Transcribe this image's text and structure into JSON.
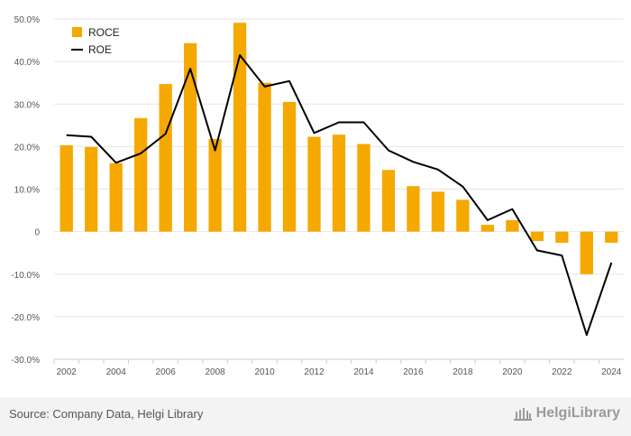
{
  "chart_data": {
    "type": "bar+line",
    "title": "",
    "xlabel": "",
    "ylabel": "",
    "ylim": [
      -30,
      50
    ],
    "y_ticks": [
      "50.0%",
      "40.0%",
      "30.0%",
      "20.0%",
      "10.0%",
      "0",
      "-10.0%",
      "-20.0%",
      "-30.0%"
    ],
    "y_tick_values": [
      50,
      40,
      30,
      20,
      10,
      0,
      -10,
      -20,
      -30
    ],
    "x": [
      2002,
      2003,
      2004,
      2005,
      2006,
      2007,
      2008,
      2009,
      2010,
      2011,
      2012,
      2013,
      2014,
      2015,
      2016,
      2017,
      2018,
      2019,
      2020,
      2021,
      2022,
      2023,
      2024
    ],
    "x_tick_labels": [
      "2002",
      "2004",
      "2006",
      "2008",
      "2010",
      "2012",
      "2014",
      "2016",
      "2018",
      "2020",
      "2022",
      "2024"
    ],
    "x_tick_values": [
      2002,
      2004,
      2006,
      2008,
      2010,
      2012,
      2014,
      2016,
      2018,
      2020,
      2022,
      2024
    ],
    "grid": true,
    "legend_position": "top-left",
    "series": [
      {
        "name": "ROCE",
        "kind": "bar",
        "color": "#F5A800",
        "values": [
          20.3,
          19.9,
          16.1,
          26.7,
          34.7,
          44.3,
          21.8,
          49.1,
          35.0,
          30.5,
          22.3,
          22.8,
          20.6,
          14.5,
          10.7,
          9.4,
          7.5,
          1.6,
          2.7,
          -2.2,
          -2.6,
          -10.0,
          -2.6
        ]
      },
      {
        "name": "ROE",
        "kind": "line",
        "color": "#000000",
        "values": [
          22.7,
          22.3,
          16.2,
          18.4,
          23.0,
          38.3,
          19.1,
          41.5,
          34.1,
          35.4,
          23.2,
          25.7,
          25.7,
          19.1,
          16.4,
          14.6,
          10.6,
          2.7,
          5.3,
          -4.4,
          -5.6,
          -24.3,
          -7.3
        ]
      }
    ]
  },
  "footer": {
    "source": "Source: Company Data, Helgi Library",
    "brand": "HelgiLibrary"
  }
}
